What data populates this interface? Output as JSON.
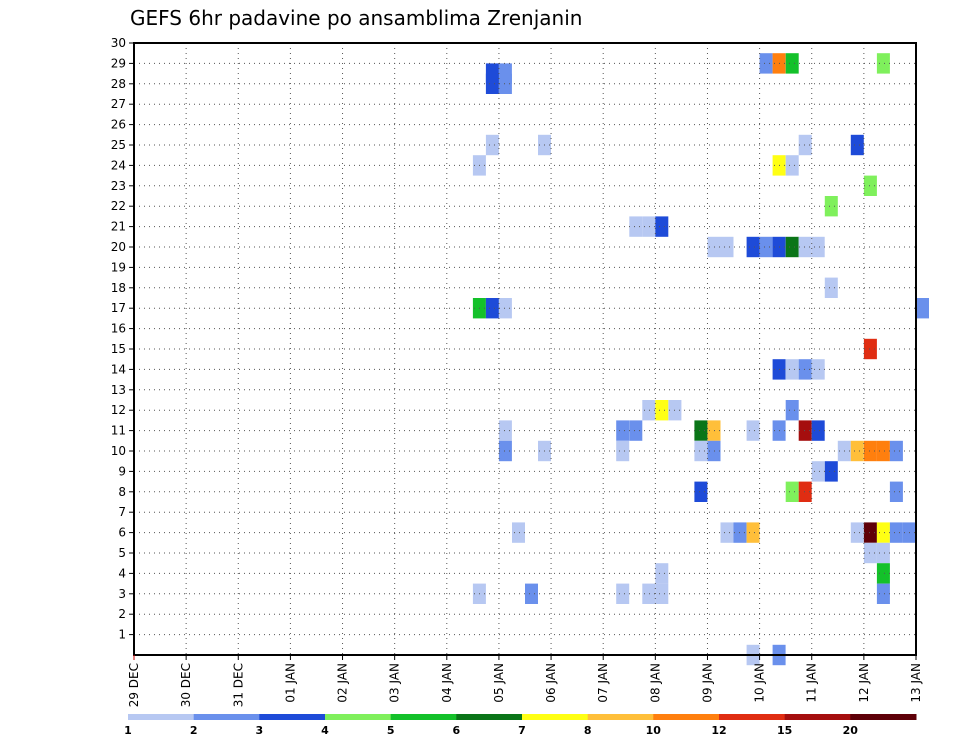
{
  "chart_data": {
    "type": "heatmap",
    "title": "GEFS 6hr padavine po ansamblima Zrenjanin",
    "xlabel": "",
    "ylabel": "",
    "x_tick_labels": [
      "29 DEC",
      "30 DEC",
      "31 DEC",
      "01 JAN",
      "02 JAN",
      "03 JAN",
      "04 JAN",
      "05 JAN",
      "06 JAN",
      "07 JAN",
      "08 JAN",
      "09 JAN",
      "10 JAN",
      "11 JAN",
      "12 JAN",
      "13 JAN"
    ],
    "y_tick_labels": [
      "1",
      "2",
      "3",
      "4",
      "5",
      "6",
      "7",
      "8",
      "9",
      "10",
      "11",
      "12",
      "13",
      "14",
      "15",
      "16",
      "17",
      "18",
      "19",
      "20",
      "21",
      "22",
      "23",
      "24",
      "25",
      "26",
      "27",
      "28",
      "29",
      "30"
    ],
    "xlim": [
      0,
      15
    ],
    "ylim": [
      0,
      30
    ],
    "grid": true,
    "legend": {
      "placement": "bottom",
      "colors": [
        "#b7c8f2",
        "#6a90ec",
        "#1e4bd8",
        "#7ff05c",
        "#14c12a",
        "#0b7518",
        "#ffff14",
        "#ffbf3a",
        "#ff7f0e",
        "#e02d12",
        "#a50e0e",
        "#5e0008"
      ],
      "labels": [
        "1",
        "2",
        "3",
        "4",
        "5",
        "6",
        "7",
        "8",
        "10",
        "12",
        "15",
        "20"
      ],
      "label_positions": [
        0,
        1,
        2,
        3,
        4,
        5,
        6,
        7,
        8,
        9,
        10,
        11
      ]
    },
    "cell_width_days": 0.25,
    "cells": [
      {
        "day": 6.75,
        "member": 28,
        "cat": 3
      },
      {
        "day": 7.0,
        "member": 28,
        "cat": 2
      },
      {
        "day": 12.0,
        "member": 29,
        "cat": 2
      },
      {
        "day": 12.25,
        "member": 29,
        "cat": 9
      },
      {
        "day": 12.5,
        "member": 29,
        "cat": 5
      },
      {
        "day": 14.25,
        "member": 29,
        "cat": 4
      },
      {
        "day": 6.75,
        "member": 28.5,
        "cat": 3
      },
      {
        "day": 7.0,
        "member": 28.5,
        "cat": 2
      },
      {
        "day": 6.75,
        "member": 25,
        "cat": 1
      },
      {
        "day": 7.75,
        "member": 25,
        "cat": 1
      },
      {
        "day": 12.75,
        "member": 25,
        "cat": 1
      },
      {
        "day": 13.75,
        "member": 25,
        "cat": 3
      },
      {
        "day": 6.5,
        "member": 24,
        "cat": 1
      },
      {
        "day": 12.25,
        "member": 24,
        "cat": 7
      },
      {
        "day": 12.5,
        "member": 24,
        "cat": 1
      },
      {
        "day": 14.0,
        "member": 23,
        "cat": 4
      },
      {
        "day": 13.25,
        "member": 22,
        "cat": 4
      },
      {
        "day": 9.5,
        "member": 21,
        "cat": 1
      },
      {
        "day": 9.75,
        "member": 21,
        "cat": 1
      },
      {
        "day": 10.0,
        "member": 21,
        "cat": 3
      },
      {
        "day": 11.0,
        "member": 20,
        "cat": 1
      },
      {
        "day": 11.25,
        "member": 20,
        "cat": 1
      },
      {
        "day": 11.75,
        "member": 20,
        "cat": 3
      },
      {
        "day": 12.0,
        "member": 20,
        "cat": 2
      },
      {
        "day": 12.25,
        "member": 20,
        "cat": 3
      },
      {
        "day": 12.5,
        "member": 20,
        "cat": 6
      },
      {
        "day": 12.75,
        "member": 20,
        "cat": 1
      },
      {
        "day": 13.0,
        "member": 20,
        "cat": 1
      },
      {
        "day": 13.25,
        "member": 18,
        "cat": 1
      },
      {
        "day": 6.5,
        "member": 17,
        "cat": 5
      },
      {
        "day": 6.75,
        "member": 17,
        "cat": 3
      },
      {
        "day": 7.0,
        "member": 17,
        "cat": 1
      },
      {
        "day": 15.0,
        "member": 17,
        "cat": 2
      },
      {
        "day": 14.0,
        "member": 15,
        "cat": 10
      },
      {
        "day": 12.25,
        "member": 14,
        "cat": 3
      },
      {
        "day": 12.5,
        "member": 14,
        "cat": 1
      },
      {
        "day": 12.75,
        "member": 14,
        "cat": 2
      },
      {
        "day": 13.0,
        "member": 14,
        "cat": 1
      },
      {
        "day": 12.5,
        "member": 12,
        "cat": 2
      },
      {
        "day": 9.75,
        "member": 12,
        "cat": 1
      },
      {
        "day": 10.0,
        "member": 12,
        "cat": 7
      },
      {
        "day": 10.25,
        "member": 12,
        "cat": 1
      },
      {
        "day": 7.0,
        "member": 11,
        "cat": 1
      },
      {
        "day": 9.25,
        "member": 11,
        "cat": 2
      },
      {
        "day": 9.5,
        "member": 11,
        "cat": 2
      },
      {
        "day": 10.75,
        "member": 11,
        "cat": 6
      },
      {
        "day": 11.0,
        "member": 11,
        "cat": 8
      },
      {
        "day": 11.75,
        "member": 11,
        "cat": 1
      },
      {
        "day": 12.25,
        "member": 11,
        "cat": 2
      },
      {
        "day": 12.75,
        "member": 11,
        "cat": 11
      },
      {
        "day": 13.0,
        "member": 11,
        "cat": 3
      },
      {
        "day": 7.0,
        "member": 10,
        "cat": 2
      },
      {
        "day": 7.75,
        "member": 10,
        "cat": 1
      },
      {
        "day": 9.25,
        "member": 10,
        "cat": 1
      },
      {
        "day": 10.75,
        "member": 10,
        "cat": 1
      },
      {
        "day": 11.0,
        "member": 10,
        "cat": 2
      },
      {
        "day": 13.5,
        "member": 10,
        "cat": 1
      },
      {
        "day": 13.75,
        "member": 10,
        "cat": 8
      },
      {
        "day": 14.0,
        "member": 10,
        "cat": 9
      },
      {
        "day": 14.25,
        "member": 10,
        "cat": 9
      },
      {
        "day": 14.5,
        "member": 10,
        "cat": 2
      },
      {
        "day": 13.0,
        "member": 9,
        "cat": 1
      },
      {
        "day": 13.25,
        "member": 9,
        "cat": 3
      },
      {
        "day": 10.75,
        "member": 8,
        "cat": 3
      },
      {
        "day": 12.5,
        "member": 8,
        "cat": 4
      },
      {
        "day": 12.75,
        "member": 8,
        "cat": 10
      },
      {
        "day": 14.5,
        "member": 8,
        "cat": 2
      },
      {
        "day": 7.25,
        "member": 6,
        "cat": 1
      },
      {
        "day": 11.25,
        "member": 6,
        "cat": 1
      },
      {
        "day": 11.5,
        "member": 6,
        "cat": 2
      },
      {
        "day": 11.75,
        "member": 6,
        "cat": 8
      },
      {
        "day": 13.75,
        "member": 6,
        "cat": 1
      },
      {
        "day": 14.0,
        "member": 6,
        "cat": 12
      },
      {
        "day": 14.25,
        "member": 6,
        "cat": 7
      },
      {
        "day": 14.5,
        "member": 6,
        "cat": 2
      },
      {
        "day": 14.75,
        "member": 6,
        "cat": 2
      },
      {
        "day": 14.0,
        "member": 5,
        "cat": 1
      },
      {
        "day": 14.25,
        "member": 5,
        "cat": 1
      },
      {
        "day": 10.0,
        "member": 4,
        "cat": 1
      },
      {
        "day": 14.25,
        "member": 4,
        "cat": 5
      },
      {
        "day": 6.5,
        "member": 3,
        "cat": 1
      },
      {
        "day": 7.5,
        "member": 3,
        "cat": 2
      },
      {
        "day": 9.25,
        "member": 3,
        "cat": 1
      },
      {
        "day": 9.75,
        "member": 3,
        "cat": 1
      },
      {
        "day": 10.0,
        "member": 3,
        "cat": 1
      },
      {
        "day": 14.25,
        "member": 3,
        "cat": 2
      },
      {
        "day": 11.75,
        "member": 0,
        "cat": 1
      },
      {
        "day": 12.25,
        "member": 0,
        "cat": 2
      }
    ]
  }
}
